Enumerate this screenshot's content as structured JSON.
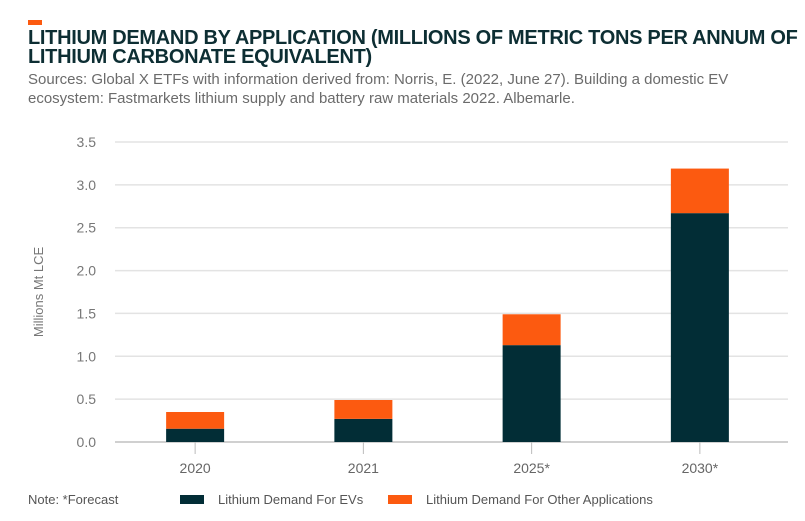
{
  "header": {
    "title": "LITHIUM DEMAND BY APPLICATION (MILLIONS OF METRIC TONS PER ANNUM OF LITHIUM CARBONATE EQUIVALENT)",
    "sources": "Sources: Global X ETFs with information derived from: Norris, E. (2022, June 27). Building a domestic EV ecosystem: Fastmarkets lithium supply and battery raw materials 2022. Albemarle."
  },
  "note": "Note: *Forecast",
  "colors": {
    "ev": "#022d36",
    "other": "#fc5a10",
    "accent": "#fc5a10",
    "grid": "#e3e3e3"
  },
  "chart_data": {
    "type": "bar",
    "stacked": true,
    "title": "LITHIUM DEMAND BY APPLICATION (MILLIONS OF METRIC TONS PER ANNUM OF LITHIUM CARBONATE EQUIVALENT)",
    "xlabel": "",
    "ylabel": "Millions Mt LCE",
    "ylim": [
      0,
      3.5
    ],
    "yticks": [
      "0.0",
      "0.5",
      "1.0",
      "1.5",
      "2.0",
      "2.5",
      "3.0",
      "3.5"
    ],
    "grid": true,
    "legend_position": "bottom",
    "categories": [
      "2020",
      "2021",
      "2025*",
      "2030*"
    ],
    "series": [
      {
        "name": "Lithium Demand For EVs",
        "values": [
          0.155,
          0.27,
          1.13,
          2.67
        ]
      },
      {
        "name": "Lithium Demand For Other Applications",
        "values": [
          0.195,
          0.22,
          0.36,
          0.52
        ]
      }
    ]
  }
}
